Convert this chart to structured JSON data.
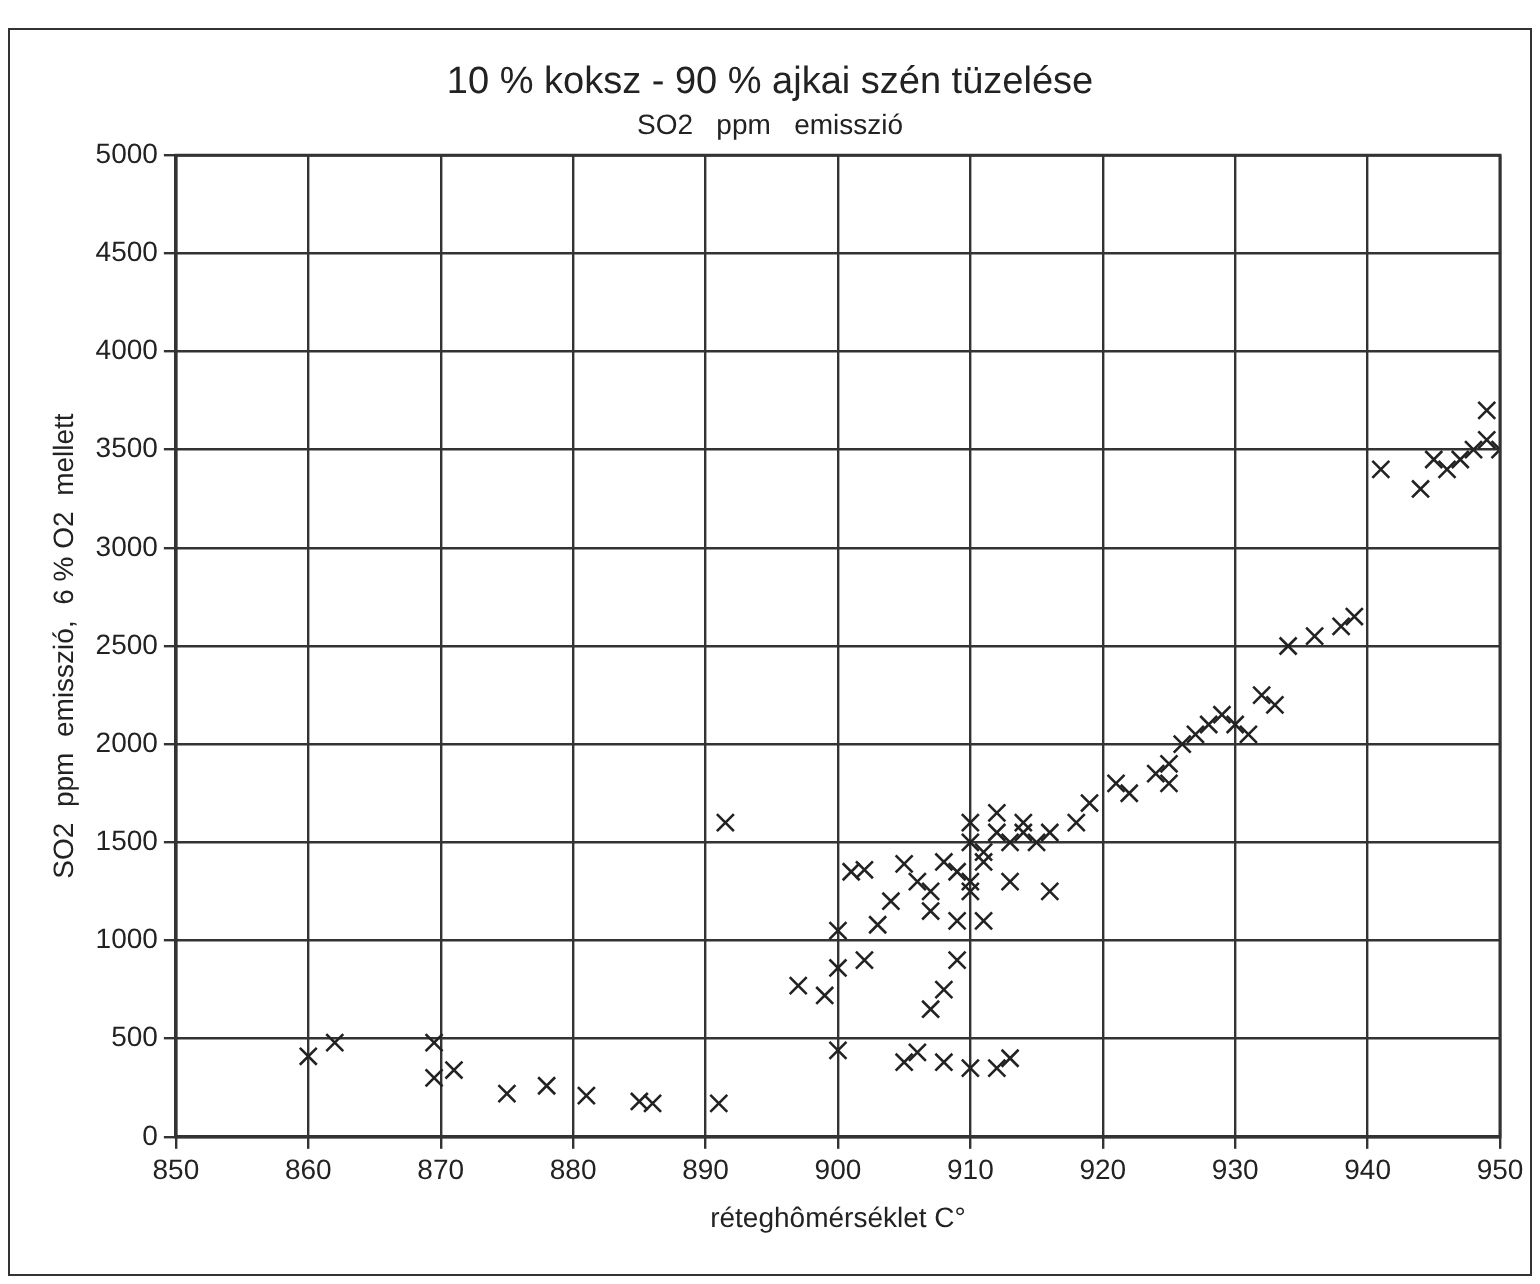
{
  "chart_data": {
    "type": "scatter",
    "title": "10 % koksz - 90 % ajkai szén tüzelése",
    "subtitle": "SO2   ppm   emisszió",
    "xlabel": "réteghômérséklet C°",
    "ylabel": "SO2  ppm  emisszió,  6 % O2  mellett",
    "x": [
      860,
      862,
      869.5,
      869.5,
      871,
      875,
      878,
      881,
      885,
      886,
      891,
      891.5,
      897,
      899,
      900,
      900,
      900,
      901,
      902,
      902,
      903,
      904,
      905,
      905,
      906,
      906,
      907,
      907,
      907,
      908,
      908,
      908,
      909,
      909,
      909,
      910,
      910,
      910,
      910,
      910,
      911,
      911,
      911,
      912,
      912,
      912,
      913,
      913,
      913,
      914,
      914,
      915,
      916,
      916,
      918,
      919,
      921,
      922,
      924,
      925,
      925,
      926,
      927,
      928,
      929,
      930,
      931,
      932,
      933,
      934,
      936,
      938,
      939,
      941,
      944,
      945,
      946,
      947,
      948,
      949,
      949,
      950
    ],
    "series": [
      {
        "color": "#222222",
        "values": [
          410,
          480,
          480,
          300,
          340,
          220,
          260,
          210,
          180,
          170,
          170,
          1600,
          770,
          720,
          440,
          1050,
          860,
          1350,
          900,
          1360,
          1080,
          1200,
          1390,
          380,
          1300,
          430,
          1250,
          1150,
          650,
          750,
          1400,
          380,
          1350,
          900,
          1100,
          1500,
          1300,
          1250,
          1600,
          350,
          1400,
          1450,
          1100,
          1550,
          1650,
          350,
          1500,
          1300,
          400,
          1550,
          1600,
          1500,
          1250,
          1550,
          1600,
          1700,
          1800,
          1750,
          1850,
          1800,
          1900,
          2000,
          2050,
          2100,
          2150,
          2100,
          2050,
          2250,
          2200,
          2500,
          2550,
          2600,
          2650,
          3400,
          3300,
          3450,
          3400,
          3450,
          3500,
          3550,
          3700,
          3500
        ]
      }
    ],
    "xlim": [
      850,
      950
    ],
    "xticks": [
      850,
      860,
      870,
      880,
      890,
      900,
      910,
      920,
      930,
      940,
      950
    ],
    "ylim": [
      0,
      5000
    ],
    "yticks": [
      0,
      500,
      1000,
      1500,
      2000,
      2500,
      3000,
      3500,
      4000,
      4500,
      5000
    ],
    "grid": true,
    "legend": false,
    "marker": "cross"
  }
}
